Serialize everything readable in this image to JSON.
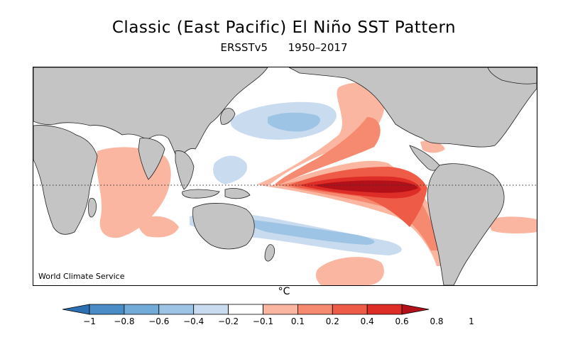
{
  "title": "Classic (East Pacific) El Niño SST Pattern",
  "subtitle": "ERSSTv5      1950–2017",
  "credit": "World Climate Service",
  "unit": "°C",
  "colorbar": {
    "colors": [
      "#2c6fb2",
      "#4a8dc6",
      "#72aad8",
      "#9dc4e4",
      "#c9dbef",
      "#ffffff",
      "#fbb6a2",
      "#f58a70",
      "#ee5c48",
      "#de2d26",
      "#b3111a"
    ],
    "labels": [
      "−1",
      "−0.8",
      "−0.6",
      "−0.4",
      "−0.2",
      "−0.1",
      "0.1",
      "0.2",
      "0.4",
      "0.6",
      "0.8",
      "1"
    ]
  },
  "map": {
    "land_color": "#c4c4c4",
    "equator_line": "dotted"
  }
}
